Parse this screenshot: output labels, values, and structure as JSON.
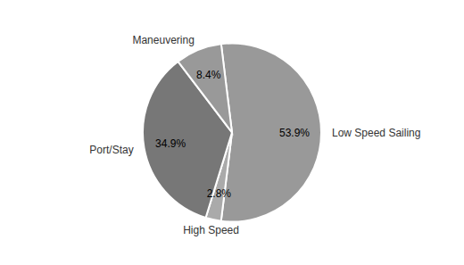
{
  "chart_data": {
    "type": "pie",
    "categories": [
      "Low Speed Sailing",
      "High Speed",
      "Port/Stay",
      "Maneuvering"
    ],
    "values": [
      53.9,
      2.8,
      34.9,
      8.4
    ],
    "value_labels": [
      "53.9%",
      "2.8%",
      "34.9%",
      "8.4%"
    ],
    "data_labels": true,
    "colors": [
      "#999999",
      "#aaaaaa",
      "#777777",
      "#999999"
    ]
  }
}
